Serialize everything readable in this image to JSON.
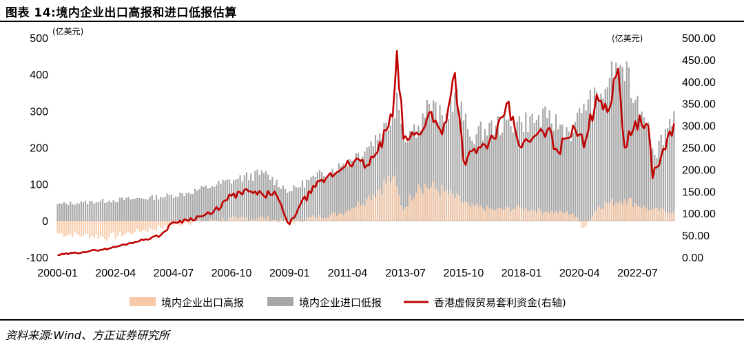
{
  "title": "图表 14:境内企业出口高报和进口低报估算",
  "source": "资料来源:Wind、方正证券研究所",
  "colors": {
    "export": "#f8c9a6",
    "import": "#a6a6a6",
    "line": "#c00000"
  },
  "chart_data": {
    "type": "bar+line",
    "left_axis": {
      "unit": "(亿美元)",
      "ticks": [
        "500",
        "400",
        "300",
        "200",
        "100",
        "0",
        "-100"
      ],
      "range": [
        -100,
        500
      ]
    },
    "right_axis": {
      "unit": "(亿美元)",
      "ticks": [
        "500.00",
        "450.00",
        "400.00",
        "350.00",
        "300.00",
        "250.00",
        "200.00",
        "150.00",
        "100.00",
        "50.00",
        "0.00"
      ],
      "range": [
        0,
        500
      ]
    },
    "x_tick_labels": [
      "2000-01",
      "2002-04",
      "2004-07",
      "2006-10",
      "2009-01",
      "2011-04",
      "2013-07",
      "2015-10",
      "2018-01",
      "2020-04",
      "2022-07"
    ],
    "x_start": "2000-01",
    "x_end": "2023-12",
    "legend": [
      "境内企业出口高报",
      "境内企业进口低报",
      "香港虚假贸易套利资金(右轴)"
    ],
    "series": [
      {
        "name": "境内企业出口高报",
        "axis": "left",
        "type": "bar",
        "anchors": [
          [
            "2000-01",
            -35
          ],
          [
            "2001-01",
            -40
          ],
          [
            "2002-01",
            -45
          ],
          [
            "2003-01",
            -30
          ],
          [
            "2004-01",
            -20
          ],
          [
            "2005-01",
            -5
          ],
          [
            "2006-01",
            2
          ],
          [
            "2007-01",
            5
          ],
          [
            "2008-01",
            8
          ],
          [
            "2009-01",
            -5
          ],
          [
            "2010-01",
            10
          ],
          [
            "2011-01",
            20
          ],
          [
            "2012-01",
            60
          ],
          [
            "2013-01",
            120
          ],
          [
            "2013-06",
            30
          ],
          [
            "2014-01",
            100
          ],
          [
            "2015-01",
            80
          ],
          [
            "2016-01",
            40
          ],
          [
            "2017-01",
            30
          ],
          [
            "2018-01",
            35
          ],
          [
            "2019-01",
            25
          ],
          [
            "2020-01",
            20
          ],
          [
            "2020-06",
            -20
          ],
          [
            "2021-01",
            40
          ],
          [
            "2022-01",
            60
          ],
          [
            "2023-01",
            30
          ],
          [
            "2023-12",
            25
          ]
        ]
      },
      {
        "name": "境内企业进口低报",
        "axis": "left",
        "type": "bar",
        "anchors": [
          [
            "2000-01",
            45
          ],
          [
            "2001-01",
            50
          ],
          [
            "2002-01",
            55
          ],
          [
            "2003-01",
            60
          ],
          [
            "2004-01",
            65
          ],
          [
            "2005-01",
            75
          ],
          [
            "2006-01",
            95
          ],
          [
            "2007-01",
            115
          ],
          [
            "2008-01",
            130
          ],
          [
            "2009-01",
            80
          ],
          [
            "2010-01",
            120
          ],
          [
            "2011-01",
            150
          ],
          [
            "2012-01",
            200
          ],
          [
            "2013-01",
            280
          ],
          [
            "2013-03",
            350
          ],
          [
            "2013-06",
            230
          ],
          [
            "2014-01",
            260
          ],
          [
            "2014-06",
            320
          ],
          [
            "2015-01",
            270
          ],
          [
            "2015-06",
            350
          ],
          [
            "2016-01",
            230
          ],
          [
            "2017-01",
            260
          ],
          [
            "2018-01",
            270
          ],
          [
            "2019-01",
            280
          ],
          [
            "2020-01",
            240
          ],
          [
            "2020-06",
            320
          ],
          [
            "2021-01",
            330
          ],
          [
            "2021-06",
            390
          ],
          [
            "2021-12",
            420
          ],
          [
            "2022-06",
            330
          ],
          [
            "2022-12",
            270
          ],
          [
            "2023-03",
            180
          ],
          [
            "2023-12",
            300
          ]
        ]
      },
      {
        "name": "香港虚假贸易套利资金(右轴)",
        "axis": "right",
        "type": "line",
        "anchors": [
          [
            "2000-01",
            5
          ],
          [
            "2001-01",
            12
          ],
          [
            "2002-01",
            20
          ],
          [
            "2003-01",
            35
          ],
          [
            "2004-01",
            50
          ],
          [
            "2004-07",
            80
          ],
          [
            "2005-01",
            85
          ],
          [
            "2006-01",
            100
          ],
          [
            "2006-10",
            140
          ],
          [
            "2007-06",
            150
          ],
          [
            "2008-01",
            140
          ],
          [
            "2008-06",
            150
          ],
          [
            "2008-12",
            80
          ],
          [
            "2009-01",
            75
          ],
          [
            "2009-06",
            120
          ],
          [
            "2010-01",
            160
          ],
          [
            "2010-06",
            180
          ],
          [
            "2011-01",
            200
          ],
          [
            "2011-04",
            220
          ],
          [
            "2012-01",
            210
          ],
          [
            "2012-06",
            240
          ],
          [
            "2013-01",
            320
          ],
          [
            "2013-03",
            470
          ],
          [
            "2013-06",
            270
          ],
          [
            "2014-01",
            280
          ],
          [
            "2014-06",
            330
          ],
          [
            "2014-12",
            280
          ],
          [
            "2015-06",
            420
          ],
          [
            "2015-10",
            220
          ],
          [
            "2016-06",
            250
          ],
          [
            "2017-01",
            270
          ],
          [
            "2017-06",
            350
          ],
          [
            "2018-01",
            250
          ],
          [
            "2018-06",
            270
          ],
          [
            "2019-01",
            290
          ],
          [
            "2019-06",
            240
          ],
          [
            "2020-01",
            300
          ],
          [
            "2020-04",
            280
          ],
          [
            "2020-06",
            250
          ],
          [
            "2020-12",
            370
          ],
          [
            "2021-06",
            340
          ],
          [
            "2021-10",
            430
          ],
          [
            "2022-01",
            250
          ],
          [
            "2022-06",
            310
          ],
          [
            "2022-12",
            300
          ],
          [
            "2023-02",
            180
          ],
          [
            "2023-06",
            230
          ],
          [
            "2023-12",
            305
          ]
        ]
      }
    ]
  }
}
